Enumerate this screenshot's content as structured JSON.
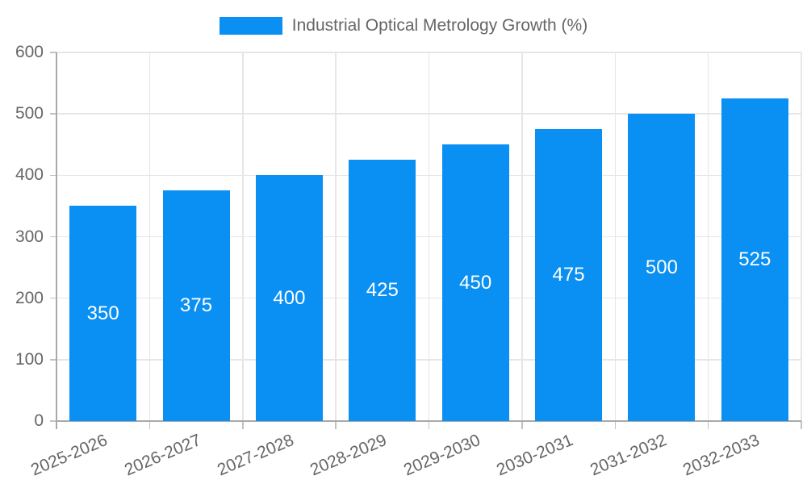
{
  "legend": {
    "label": "Industrial Optical Metrology Growth (%)",
    "swatch_color": "#0a8ff2"
  },
  "colors": {
    "bar": "#0a8ff2",
    "bar_label": "#ffffff",
    "text": "#666666",
    "grid": "#e6e6e6",
    "axis": "#a9a9a9",
    "tick": "#c2c2c2",
    "background": "#ffffff"
  },
  "chart_data": {
    "type": "bar",
    "title": "Industrial Optical Metrology Growth (%)",
    "categories": [
      "2025-2026",
      "2026-2027",
      "2027-2028",
      "2028-2029",
      "2029-2030",
      "2030-2031",
      "2031-2032",
      "2032-2033"
    ],
    "values": [
      350,
      375,
      400,
      425,
      450,
      475,
      500,
      525
    ],
    "xlabel": "",
    "ylabel": "",
    "ylim": [
      0,
      600
    ],
    "yticks": [
      0,
      100,
      200,
      300,
      400,
      500,
      600
    ],
    "grid": true,
    "legend_position": "top",
    "x_tick_rotation_deg": -23,
    "bar_value_labels_inside": true
  }
}
